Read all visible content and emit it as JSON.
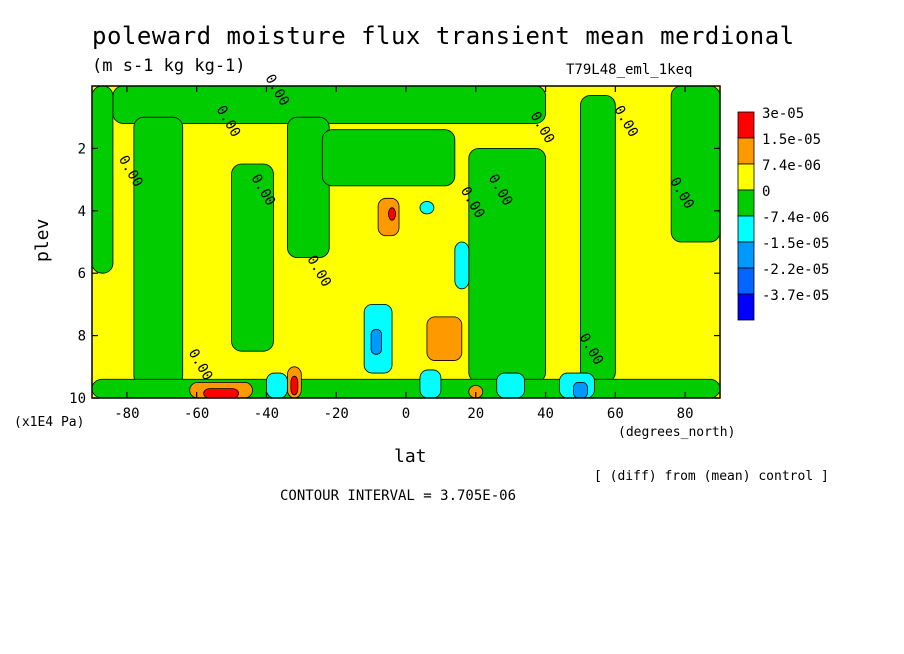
{
  "chart_data": {
    "type": "heatmap",
    "title": "poleward moisture flux transient mean merdional",
    "units": "(m s-1 kg kg-1)",
    "run_label": "T79L48_eml_1keq",
    "xlabel": "lat",
    "x_units": "(degrees_north)",
    "ylabel": "plev",
    "y_units": "(x1E4 Pa)",
    "note": "[ (diff) from (mean) control ]",
    "contour_interval": "CONTOUR INTERVAL = 3.705E-06",
    "xlim": [
      -90,
      90
    ],
    "ylim": [
      10,
      0
    ],
    "x_ticks": [
      {
        "value": -80,
        "label": "-80"
      },
      {
        "value": -60,
        "label": "-60"
      },
      {
        "value": -40,
        "label": "-40"
      },
      {
        "value": -20,
        "label": "-20"
      },
      {
        "value": 0,
        "label": "0"
      },
      {
        "value": 20,
        "label": "20"
      },
      {
        "value": 40,
        "label": "40"
      },
      {
        "value": 60,
        "label": "60"
      },
      {
        "value": 80,
        "label": "80"
      }
    ],
    "y_ticks": [
      {
        "value": 2,
        "label": "2"
      },
      {
        "value": 4,
        "label": "4"
      },
      {
        "value": 6,
        "label": "6"
      },
      {
        "value": 8,
        "label": "8"
      },
      {
        "value": 10,
        "label": "10"
      }
    ],
    "legend": [
      {
        "label": "3e-05",
        "color": "#ff0000"
      },
      {
        "label": "1.5e-05",
        "color": "#ff9900"
      },
      {
        "label": "7.4e-06",
        "color": "#ffff00"
      },
      {
        "label": "0",
        "color": "#00cc00"
      },
      {
        "label": "-7.4e-06",
        "color": "#00ffff"
      },
      {
        "label": "-1.5e-05",
        "color": "#0099ff"
      },
      {
        "label": "-2.2e-05",
        "color": "#0066ff"
      },
      {
        "label": "-3.7e-05",
        "color": "#0000ff"
      }
    ],
    "colors": {
      "positive_small": "#ffff00",
      "negative_small": "#00cc00",
      "positive_mid": "#ff9900",
      "positive_high": "#ff0000",
      "negative_mid": "#00ffff",
      "negative_high": "#0099ff",
      "negative_max": "#0066ff"
    },
    "contour_label": "0.00",
    "green_regions": [
      {
        "lat": [
          -90,
          -84
        ],
        "plev": [
          0,
          6
        ]
      },
      {
        "lat": [
          -84,
          40
        ],
        "plev": [
          0,
          1.2
        ]
      },
      {
        "lat": [
          -78,
          -64
        ],
        "plev": [
          1,
          9.6
        ]
      },
      {
        "lat": [
          -50,
          -38
        ],
        "plev": [
          2.5,
          8.5
        ]
      },
      {
        "lat": [
          -34,
          -22
        ],
        "plev": [
          1,
          5.5
        ]
      },
      {
        "lat": [
          -24,
          14
        ],
        "plev": [
          1.4,
          3.2
        ]
      },
      {
        "lat": [
          18,
          40
        ],
        "plev": [
          2,
          9.5
        ]
      },
      {
        "lat": [
          50,
          60
        ],
        "plev": [
          0.3,
          9.5
        ]
      },
      {
        "lat": [
          76,
          90
        ],
        "plev": [
          0,
          5
        ]
      },
      {
        "lat": [
          -90,
          90
        ],
        "plev": [
          9.4,
          10
        ]
      }
    ],
    "orange_regions": [
      {
        "lat": [
          -62,
          -44
        ],
        "plev": [
          9.5,
          10
        ]
      },
      {
        "lat": [
          -34,
          -30
        ],
        "plev": [
          9.0,
          10
        ]
      },
      {
        "lat": [
          -8,
          -2
        ],
        "plev": [
          3.6,
          4.8
        ]
      },
      {
        "lat": [
          6,
          16
        ],
        "plev": [
          7.4,
          8.8
        ]
      },
      {
        "lat": [
          18,
          22
        ],
        "plev": [
          9.6,
          10
        ]
      }
    ],
    "red_regions": [
      {
        "lat": [
          -58,
          -48
        ],
        "plev": [
          9.7,
          10
        ]
      },
      {
        "lat": [
          -33,
          -31
        ],
        "plev": [
          9.3,
          9.9
        ]
      },
      {
        "lat": [
          -5,
          -3
        ],
        "plev": [
          3.9,
          4.3
        ]
      }
    ],
    "cyan_regions": [
      {
        "lat": [
          -12,
          -4
        ],
        "plev": [
          7,
          9.2
        ]
      },
      {
        "lat": [
          -40,
          -34
        ],
        "plev": [
          9.2,
          10
        ]
      },
      {
        "lat": [
          4,
          10
        ],
        "plev": [
          9.1,
          10
        ]
      },
      {
        "lat": [
          26,
          34
        ],
        "plev": [
          9.2,
          10
        ]
      },
      {
        "lat": [
          44,
          54
        ],
        "plev": [
          9.2,
          10
        ]
      },
      {
        "lat": [
          14,
          18
        ],
        "plev": [
          5,
          6.5
        ]
      },
      {
        "lat": [
          4,
          8
        ],
        "plev": [
          3.7,
          4.1
        ]
      }
    ],
    "blue_regions": [
      {
        "lat": [
          -10,
          -7
        ],
        "plev": [
          7.8,
          8.6
        ]
      },
      {
        "lat": [
          48,
          52
        ],
        "plev": [
          9.5,
          10
        ]
      }
    ]
  }
}
